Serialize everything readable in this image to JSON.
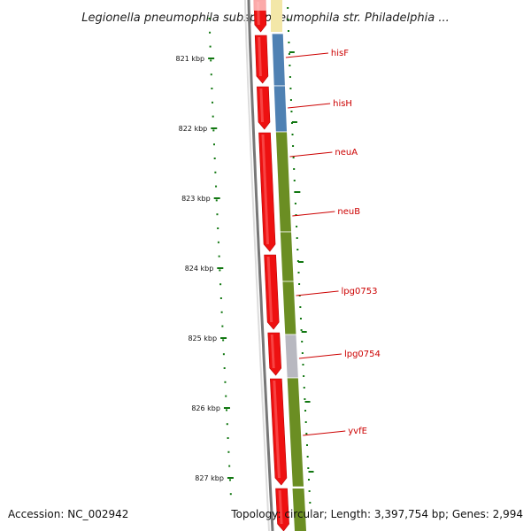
{
  "title": "Legionella pneumophila subsp. pneumophila str. Philadelphia ...",
  "footer": {
    "accession": "Accession: NC_002942",
    "topology": "Topology: circular; Length: 3,397,754 bp; Genes: 2,994"
  },
  "ticks": [
    {
      "kbp": 821,
      "label": "821 kbp"
    },
    {
      "kbp": 822,
      "label": "822 kbp"
    },
    {
      "kbp": 823,
      "label": "823 kbp"
    },
    {
      "kbp": 824,
      "label": "824 kbp"
    },
    {
      "kbp": 825,
      "label": "825 kbp"
    },
    {
      "kbp": 826,
      "label": "826 kbp"
    },
    {
      "kbp": 827,
      "label": "827 kbp"
    }
  ],
  "genes": [
    {
      "name": "hisF",
      "color": "#4f81b3"
    },
    {
      "name": "hisH",
      "color": "#4f81b3"
    },
    {
      "name": "neuA",
      "color": "#6b8e23"
    },
    {
      "name": "neuB",
      "color": "#6b8e23"
    },
    {
      "name": "lpg0753",
      "color": "#6b8e23"
    },
    {
      "name": "lpg0754",
      "color": "#b8b8c0"
    },
    {
      "name": "yvfE",
      "color": "#6b8e23"
    }
  ],
  "colors": {
    "cds_strand": "#ee1111",
    "backbone": "#777777",
    "tick": "#117711",
    "label": "#cc0000"
  }
}
